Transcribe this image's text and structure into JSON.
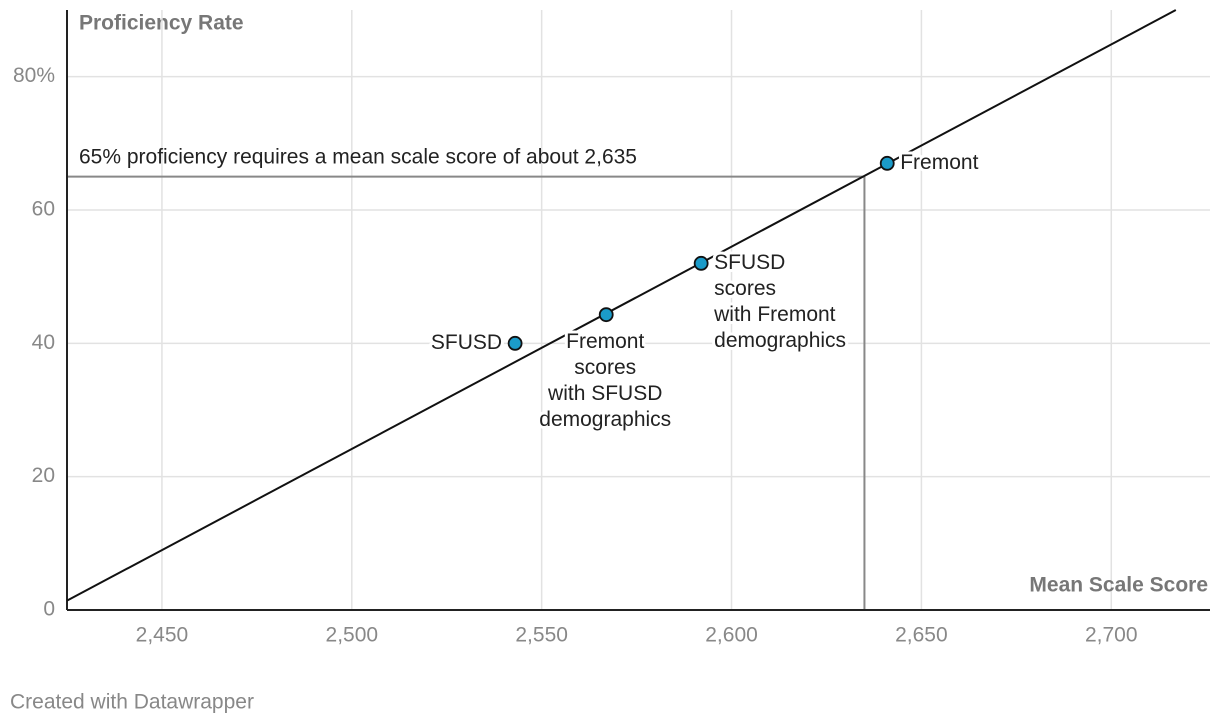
{
  "chart_data": {
    "type": "scatter",
    "y_title": "Proficiency Rate",
    "x_title": "Mean Scale Score",
    "annotation": "65% proficiency requires a mean scale score of about 2,635",
    "footer": "Created with Datawrapper",
    "xlim": [
      2425,
      2726
    ],
    "ylim": [
      0,
      90
    ],
    "xticks": [
      {
        "value": 2450,
        "label": "2,450"
      },
      {
        "value": 2500,
        "label": "2,500"
      },
      {
        "value": 2550,
        "label": "2,550"
      },
      {
        "value": 2600,
        "label": "2,600"
      },
      {
        "value": 2650,
        "label": "2,650"
      },
      {
        "value": 2700,
        "label": "2,700"
      }
    ],
    "yticks": [
      0,
      20,
      40,
      60,
      {
        "value": 80,
        "label": "80%"
      }
    ],
    "grid": true,
    "color": "#1b9bc9",
    "points": {
      "x": [
        2543,
        2567,
        2592,
        2641
      ],
      "y": [
        40,
        44.3,
        52,
        67
      ],
      "labels": [
        [
          "SFUSD"
        ],
        [
          "Fremont",
          "scores",
          "with SFUSD",
          "demographics"
        ],
        [
          "SFUSD",
          "scores",
          "with Fremont",
          "demographics"
        ],
        [
          "Fremont"
        ]
      ]
    },
    "trend_line": {
      "x": [
        2425,
        2717
      ],
      "y": [
        1.4,
        90
      ]
    },
    "reference": {
      "x": 2635,
      "y": 65
    }
  }
}
